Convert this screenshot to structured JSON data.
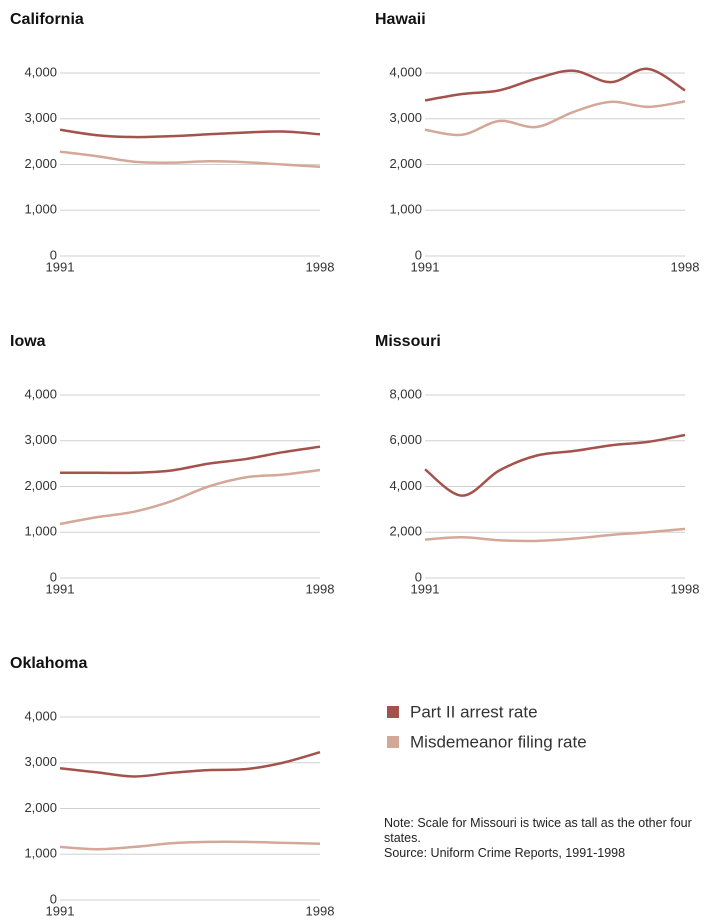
{
  "chart_data": [
    {
      "type": "line",
      "title": "California",
      "x": [
        1991,
        1992,
        1993,
        1994,
        1995,
        1996,
        1997,
        1998
      ],
      "xlim": [
        1991,
        1998
      ],
      "xticks": [
        1991,
        1998
      ],
      "ylim": [
        0,
        4000
      ],
      "yticks": [
        0,
        {
          "value": 1000,
          "label": "1,000"
        },
        {
          "value": 2000,
          "label": "2,000"
        },
        {
          "value": 3000,
          "label": "3,000"
        },
        {
          "value": 4000,
          "label": "4,000"
        }
      ],
      "grid": true,
      "series": [
        {
          "name": "Part II arrest rate",
          "color": "#a4524c",
          "values": [
            2760,
            2640,
            2600,
            2620,
            2660,
            2700,
            2720,
            2660
          ]
        },
        {
          "name": "Misdemeanor filing rate",
          "color": "#d4a898",
          "values": [
            2280,
            2180,
            2060,
            2040,
            2070,
            2050,
            2000,
            1950
          ]
        }
      ]
    },
    {
      "type": "line",
      "title": "Hawaii",
      "x": [
        1991,
        1992,
        1993,
        1994,
        1995,
        1996,
        1997,
        1998
      ],
      "xlim": [
        1991,
        1998
      ],
      "xticks": [
        1991,
        1998
      ],
      "ylim": [
        0,
        4000
      ],
      "yticks": [
        0,
        {
          "value": 1000,
          "label": "1,000"
        },
        {
          "value": 2000,
          "label": "2,000"
        },
        {
          "value": 3000,
          "label": "3,000"
        },
        {
          "value": 4000,
          "label": "4,000"
        }
      ],
      "grid": true,
      "series": [
        {
          "name": "Part II arrest rate",
          "color": "#a4524c",
          "values": [
            3400,
            3540,
            3620,
            3880,
            4050,
            3800,
            4090,
            3620
          ]
        },
        {
          "name": "Misdemeanor filing rate",
          "color": "#d4a898",
          "values": [
            2760,
            2650,
            2950,
            2820,
            3150,
            3370,
            3260,
            3380
          ]
        }
      ]
    },
    {
      "type": "line",
      "title": "Iowa",
      "x": [
        1991,
        1992,
        1993,
        1994,
        1995,
        1996,
        1997,
        1998
      ],
      "xlim": [
        1991,
        1998
      ],
      "xticks": [
        1991,
        1998
      ],
      "ylim": [
        0,
        4000
      ],
      "yticks": [
        0,
        {
          "value": 1000,
          "label": "1,000"
        },
        {
          "value": 2000,
          "label": "2,000"
        },
        {
          "value": 3000,
          "label": "3,000"
        },
        {
          "value": 4000,
          "label": "4,000"
        }
      ],
      "grid": true,
      "series": [
        {
          "name": "Part II arrest rate",
          "color": "#a4524c",
          "values": [
            2300,
            2300,
            2300,
            2350,
            2500,
            2600,
            2750,
            2870
          ]
        },
        {
          "name": "Misdemeanor filing rate",
          "color": "#d4a898",
          "values": [
            1180,
            1330,
            1450,
            1680,
            2000,
            2200,
            2260,
            2360
          ]
        }
      ]
    },
    {
      "type": "line",
      "title": "Missouri",
      "x": [
        1991,
        1992,
        1993,
        1994,
        1995,
        1996,
        1997,
        1998
      ],
      "xlim": [
        1991,
        1998
      ],
      "xticks": [
        1991,
        1998
      ],
      "ylim": [
        0,
        8000
      ],
      "yticks": [
        0,
        {
          "value": 2000,
          "label": "2,000"
        },
        {
          "value": 4000,
          "label": "4,000"
        },
        {
          "value": 6000,
          "label": "6,000"
        },
        {
          "value": 8000,
          "label": "8,000"
        }
      ],
      "grid": true,
      "series": [
        {
          "name": "Part II arrest rate",
          "color": "#a4524c",
          "values": [
            4750,
            3600,
            4700,
            5350,
            5550,
            5800,
            5950,
            6250
          ]
        },
        {
          "name": "Misdemeanor filing rate",
          "color": "#d4a898",
          "values": [
            1680,
            1780,
            1650,
            1620,
            1720,
            1880,
            2000,
            2150
          ]
        }
      ]
    },
    {
      "type": "line",
      "title": "Oklahoma",
      "x": [
        1991,
        1992,
        1993,
        1994,
        1995,
        1996,
        1997,
        1998
      ],
      "xlim": [
        1991,
        1998
      ],
      "xticks": [
        1991,
        1998
      ],
      "ylim": [
        0,
        4000
      ],
      "yticks": [
        0,
        {
          "value": 1000,
          "label": "1,000"
        },
        {
          "value": 2000,
          "label": "2,000"
        },
        {
          "value": 3000,
          "label": "3,000"
        },
        {
          "value": 4000,
          "label": "4,000"
        }
      ],
      "grid": true,
      "series": [
        {
          "name": "Part II arrest rate",
          "color": "#a4524c",
          "values": [
            2880,
            2790,
            2700,
            2780,
            2840,
            2860,
            3000,
            3230
          ]
        },
        {
          "name": "Misdemeanor filing rate",
          "color": "#d4a898",
          "values": [
            1160,
            1110,
            1160,
            1240,
            1270,
            1270,
            1250,
            1230
          ]
        }
      ]
    }
  ],
  "note": "Note: Scale for Missouri is twice as tall as the other four states.",
  "source": "Source: Uniform Crime Reports, 1991-1998"
}
